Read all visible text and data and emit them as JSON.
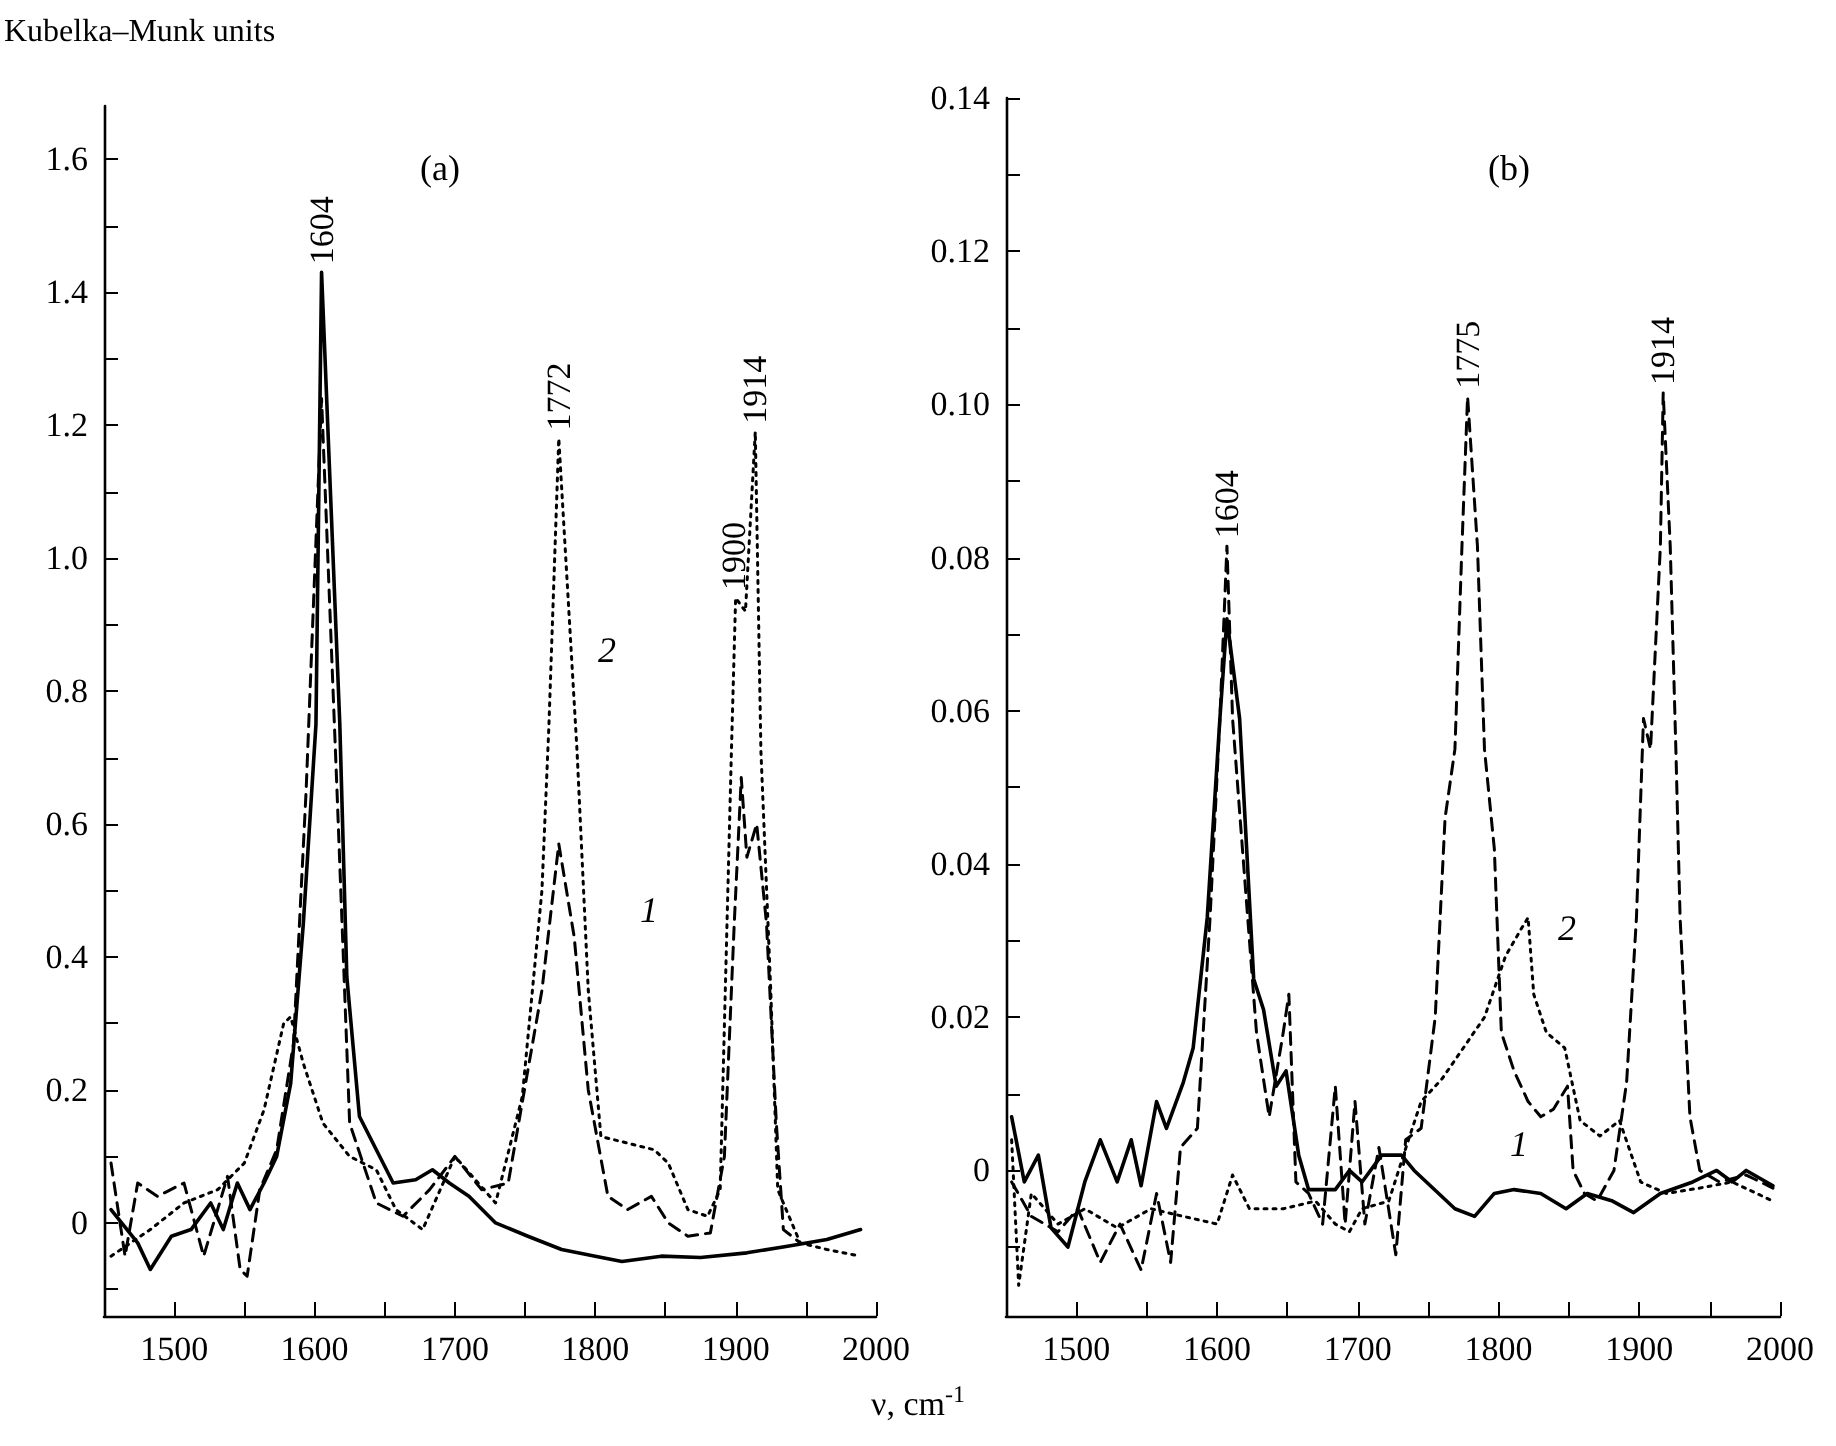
{
  "chart_data": [
    {
      "type": "line",
      "title": "(a)",
      "ylabel": "Kubelka–Munk units",
      "xlabel": "ν, cm$^{-1}$",
      "grid": false,
      "marker": "none",
      "xlim": [
        1450,
        2000
      ],
      "xticks": [
        1500,
        {
          "value": 1550,
          "label": null
        },
        1600,
        {
          "value": 1650,
          "label": null
        },
        1700,
        {
          "value": 1750,
          "label": null
        },
        1800,
        {
          "value": 1850,
          "label": null
        },
        1900,
        {
          "value": 1950,
          "label": null
        },
        2000
      ],
      "ylim": [
        -0.14,
        1.68
      ],
      "yticks": [
        {
          "value": -0.1,
          "label": null
        },
        0,
        {
          "value": 0.1,
          "label": null
        },
        0.2,
        {
          "value": 0.3,
          "label": null
        },
        0.4,
        {
          "value": 0.5,
          "label": null
        },
        0.6,
        {
          "value": 0.7,
          "label": null
        },
        0.8,
        {
          "value": 0.9,
          "label": null
        },
        {
          "value": 1,
          "label": "1.0"
        },
        {
          "value": 1.1,
          "label": null
        },
        1.2,
        {
          "value": 1.3,
          "label": null
        },
        1.4,
        {
          "value": 1.5,
          "label": null
        },
        1.6
      ],
      "annotations": [
        {
          "text": "1604",
          "x": 1605,
          "y": 1.43
        },
        {
          "text": "1772",
          "x": 1774,
          "y": 1.18
        },
        {
          "text": "1900",
          "x": 1899,
          "y": 0.94
        },
        {
          "text": "1914",
          "x": 1914,
          "y": 1.19
        },
        "2",
        "1"
      ],
      "series": [
        {
          "color": "#000000",
          "line_style": "solid",
          "x": [
            1455,
            1474,
            1483,
            1498,
            1512,
            1526,
            1535,
            1545,
            1554,
            1564,
            1573,
            1583,
            1592,
            1601,
            1605,
            1618,
            1623,
            1632,
            1644,
            1656,
            1672,
            1684,
            1696,
            1710,
            1729,
            1752,
            1776,
            1800,
            1819,
            1847,
            1875,
            1908,
            1937,
            1965,
            1989
          ],
          "values": [
            0.02,
            -0.03,
            -0.07,
            -0.02,
            -0.01,
            0.03,
            -0.01,
            0.06,
            0.02,
            0.06,
            0.1,
            0.21,
            0.45,
            0.75,
            1.43,
            0.75,
            0.37,
            0.16,
            0.11,
            0.06,
            0.065,
            0.08,
            0.06,
            0.04,
            0,
            -0.02,
            -0.04,
            -0.05,
            -0.058,
            -0.05,
            -0.052,
            -0.045,
            -0.035,
            -0.025,
            -0.01
          ]
        },
        {
          "color": "#000000",
          "line_style": "dashed",
          "x": [
            1455,
            1465,
            1474,
            1488,
            1507,
            1521,
            1538,
            1547,
            1552,
            1561,
            1573,
            1585,
            1594,
            1605,
            1616,
            1625,
            1644,
            1663,
            1682,
            1700,
            1719,
            1738,
            1752,
            1762,
            1774,
            1785,
            1795,
            1809,
            1823,
            1840,
            1852,
            1866,
            1882,
            1892,
            1899,
            1904,
            1908,
            1915,
            1922,
            1929,
            1934,
            1946
          ],
          "values": [
            0.09,
            -0.05,
            0.06,
            0.04,
            0.06,
            -0.05,
            0.07,
            -0.07,
            -0.08,
            0.05,
            0.11,
            0.27,
            0.65,
            1.24,
            0.65,
            0.15,
            0.03,
            0.01,
            0.05,
            0.1,
            0.05,
            0.06,
            0.23,
            0.35,
            0.57,
            0.43,
            0.2,
            0.04,
            0.02,
            0.04,
            0,
            -0.02,
            -0.015,
            0.1,
            0.45,
            0.67,
            0.55,
            0.6,
            0.45,
            0.15,
            -0.01,
            -0.03
          ]
        },
        {
          "color": "#000000",
          "line_style": "dotted",
          "x": [
            1455,
            1483,
            1507,
            1531,
            1550,
            1564,
            1578,
            1583,
            1592,
            1606,
            1625,
            1644,
            1658,
            1677,
            1700,
            1729,
            1748,
            1762,
            1767,
            1774,
            1787,
            1795,
            1804,
            1823,
            1842,
            1852,
            1866,
            1880,
            1889,
            1897,
            1900,
            1907,
            1914,
            1918,
            1925,
            1930,
            1946,
            1965,
            1989
          ],
          "values": [
            -0.05,
            -0.01,
            0.03,
            0.05,
            0.09,
            0.17,
            0.3,
            0.31,
            0.24,
            0.15,
            0.1,
            0.08,
            0.02,
            -0.01,
            0.1,
            0.03,
            0.19,
            0.5,
            0.75,
            1.18,
            0.71,
            0.35,
            0.13,
            0.12,
            0.11,
            0.09,
            0.02,
            0.01,
            0.05,
            0.71,
            0.94,
            0.92,
            1.19,
            0.71,
            0.35,
            0.05,
            -0.03,
            -0.04,
            -0.05
          ]
        }
      ]
    },
    {
      "type": "line",
      "title": "(b)",
      "grid": false,
      "marker": "none",
      "xlim": [
        1450,
        2000
      ],
      "xticks": [
        1500,
        {
          "value": 1550,
          "label": null
        },
        1600,
        {
          "value": 1650,
          "label": null
        },
        1700,
        {
          "value": 1750,
          "label": null
        },
        1800,
        {
          "value": 1850,
          "label": null
        },
        1900,
        {
          "value": 1950,
          "label": null
        },
        2000
      ],
      "ylim": [
        -0.019,
        0.14
      ],
      "yticks": [
        {
          "value": -0.01,
          "label": null
        },
        0,
        {
          "value": 0.01,
          "label": null
        },
        0.02,
        {
          "value": 0.03,
          "label": null
        },
        0.04,
        {
          "value": 0.05,
          "label": null
        },
        0.06,
        {
          "value": 0.07,
          "label": null
        },
        0.08,
        {
          "value": 0.09,
          "label": null
        },
        {
          "value": 0.1,
          "label": "0.10"
        },
        {
          "value": 0.11,
          "label": null
        },
        0.12,
        {
          "value": 0.13,
          "label": null
        },
        0.14
      ],
      "annotations": [
        {
          "text": "1604",
          "x": 1607,
          "y": 0.0815
        },
        {
          "text": "1775",
          "x": 1778,
          "y": 0.101
        },
        {
          "text": "1914",
          "x": 1917,
          "y": 0.1015
        },
        "2",
        "1"
      ],
      "series": [
        {
          "color": "#000000",
          "line_style": "solid",
          "x": [
            1454,
            1463,
            1473,
            1482,
            1494,
            1506,
            1517,
            1529,
            1539,
            1546,
            1557,
            1564,
            1576,
            1583,
            1593,
            1602,
            1607,
            1616,
            1626,
            1633,
            1642,
            1649,
            1658,
            1665,
            1684,
            1694,
            1703,
            1717,
            1731,
            1740,
            1769,
            1783,
            1797,
            1811,
            1830,
            1848,
            1863,
            1881,
            1896,
            1915,
            1938,
            1955,
            1966,
            1976,
            1995
          ],
          "values": [
            0.007,
            -0.0015,
            0.002,
            -0.0075,
            -0.01,
            -0.0015,
            0.004,
            -0.0015,
            0.004,
            -0.002,
            0.009,
            0.0055,
            0.0115,
            0.016,
            0.033,
            0.059,
            0.072,
            0.059,
            0.025,
            0.021,
            0.011,
            0.013,
            0.002,
            -0.0025,
            -0.0025,
            0,
            -0.0015,
            0.002,
            0.002,
            0,
            -0.005,
            -0.006,
            -0.003,
            -0.0025,
            -0.003,
            -0.005,
            -0.003,
            -0.004,
            -0.0055,
            -0.003,
            -0.0015,
            0,
            -0.0015,
            0,
            -0.002
          ]
        },
        {
          "color": "#000000",
          "line_style": "dashed",
          "x": [
            1454,
            1468,
            1487,
            1501,
            1517,
            1531,
            1546,
            1557,
            1567,
            1574,
            1586,
            1595,
            1602,
            1607,
            1611,
            1618,
            1628,
            1637,
            1647,
            1651,
            1656,
            1665,
            1675,
            1684,
            1691,
            1698,
            1705,
            1715,
            1727,
            1734,
            1745,
            1755,
            1762,
            1769,
            1774,
            1778,
            1785,
            1790,
            1797,
            1802,
            1811,
            1821,
            1830,
            1839,
            1849,
            1853,
            1861,
            1870,
            1882,
            1891,
            1898,
            1903,
            1908,
            1915,
            1917,
            1922,
            1926,
            1929,
            1936,
            1943,
            1957,
            1976,
            1995
          ],
          "values": [
            -0.0015,
            -0.006,
            -0.008,
            -0.005,
            -0.012,
            -0.007,
            -0.013,
            -0.003,
            -0.012,
            0.003,
            0.0055,
            0.033,
            0.059,
            0.0815,
            0.059,
            0.042,
            0.018,
            0.007,
            0.018,
            0.023,
            -0.0015,
            -0.003,
            -0.007,
            0.011,
            -0.007,
            0.009,
            -0.007,
            0.003,
            -0.011,
            0.004,
            0.0055,
            0.02,
            0.046,
            0.055,
            0.0815,
            0.101,
            0.0815,
            0.055,
            0.042,
            0.018,
            0.013,
            0.009,
            0.007,
            0.008,
            0.011,
            0,
            -0.003,
            -0.004,
            0,
            0.0115,
            0.033,
            0.059,
            0.055,
            0.0815,
            0.1015,
            0.0815,
            0.055,
            0.033,
            0.007,
            0,
            -0.0015,
            -0.0006,
            -0.0023
          ]
        },
        {
          "color": "#000000",
          "line_style": "dotted",
          "x": [
            1454,
            1459,
            1468,
            1487,
            1506,
            1529,
            1553,
            1576,
            1600,
            1611,
            1623,
            1647,
            1670,
            1684,
            1694,
            1703,
            1722,
            1736,
            1745,
            1760,
            1790,
            1805,
            1816,
            1821,
            1825,
            1834,
            1847,
            1858,
            1872,
            1886,
            1901,
            1919,
            1943,
            1966,
            1995
          ],
          "values": [
            0.004,
            -0.015,
            -0.003,
            -0.007,
            -0.005,
            -0.0075,
            -0.005,
            -0.006,
            -0.007,
            -0.0006,
            -0.005,
            -0.005,
            -0.004,
            -0.007,
            -0.008,
            -0.005,
            -0.004,
            0.004,
            0.009,
            0.012,
            0.02,
            0.028,
            0.0315,
            0.033,
            0.023,
            0.018,
            0.016,
            0.0065,
            0.0045,
            0.0065,
            -0.0015,
            -0.003,
            -0.0023,
            -0.0015,
            -0.004
          ]
        }
      ]
    }
  ]
}
